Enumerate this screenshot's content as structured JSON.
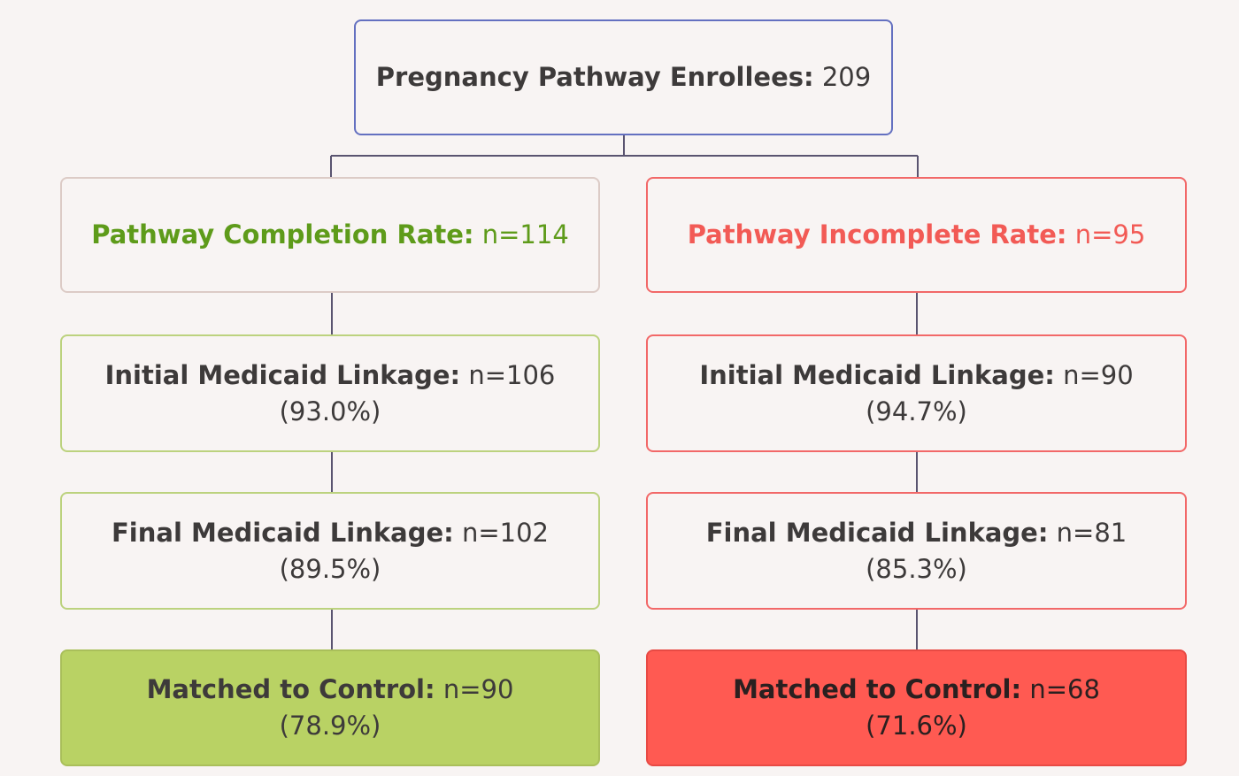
{
  "top": {
    "label": "Pregnancy Pathway Enrollees:",
    "value": "209"
  },
  "columns": [
    {
      "nodes": [
        {
          "label": "Pathway Completion Rate:",
          "value": "n=114"
        },
        {
          "label": "Initial Medicaid Linkage:",
          "value": "n=106",
          "percent": "(93.0%)"
        },
        {
          "label": "Final Medicaid Linkage:",
          "value": "n=102",
          "percent": "(89.5%)"
        },
        {
          "label": "Matched to Control:",
          "value": "n=90",
          "percent": "(78.9%)"
        }
      ]
    },
    {
      "nodes": [
        {
          "label": "Pathway Incomplete Rate:",
          "value": "n=95"
        },
        {
          "label": "Initial Medicaid Linkage:",
          "value": "n=90",
          "percent": "(94.7%)"
        },
        {
          "label": "Final Medicaid Linkage:",
          "value": "n=81",
          "percent": "(85.3%)"
        },
        {
          "label": "Matched to Control:",
          "value": "n=68",
          "percent": "(71.6%)"
        }
      ]
    }
  ]
}
